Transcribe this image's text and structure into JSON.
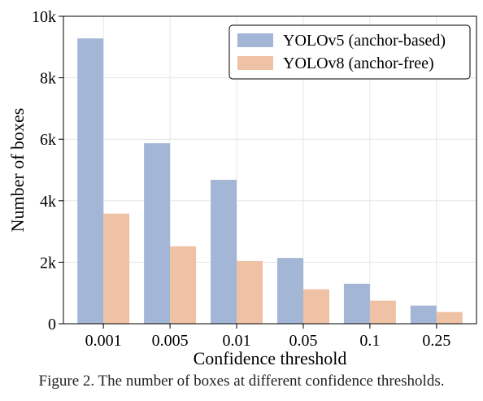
{
  "chart_data": {
    "type": "bar",
    "categories": [
      "0.001",
      "0.005",
      "0.01",
      "0.05",
      "0.1",
      "0.25"
    ],
    "series": [
      {
        "name": "YOLOv5 (anchor-based)",
        "values": [
          9280,
          5870,
          4680,
          2140,
          1300,
          590
        ],
        "color": "#a3b6d6"
      },
      {
        "name": "YOLOv8 (anchor-free)",
        "values": [
          3580,
          2520,
          2040,
          1120,
          750,
          380
        ],
        "color": "#efc1a5"
      }
    ],
    "title": "",
    "xlabel": "Confidence threshold",
    "ylabel": "Number of boxes",
    "ylim": [
      0,
      10000
    ],
    "yticks": [
      0,
      2000,
      4000,
      6000,
      8000,
      10000
    ],
    "ytick_labels": [
      "0",
      "2k",
      "4k",
      "6k",
      "8k",
      "10k"
    ],
    "grid": true,
    "legend_position": "top-right"
  },
  "caption": "Figure 2. The number of boxes at different confidence thresholds."
}
